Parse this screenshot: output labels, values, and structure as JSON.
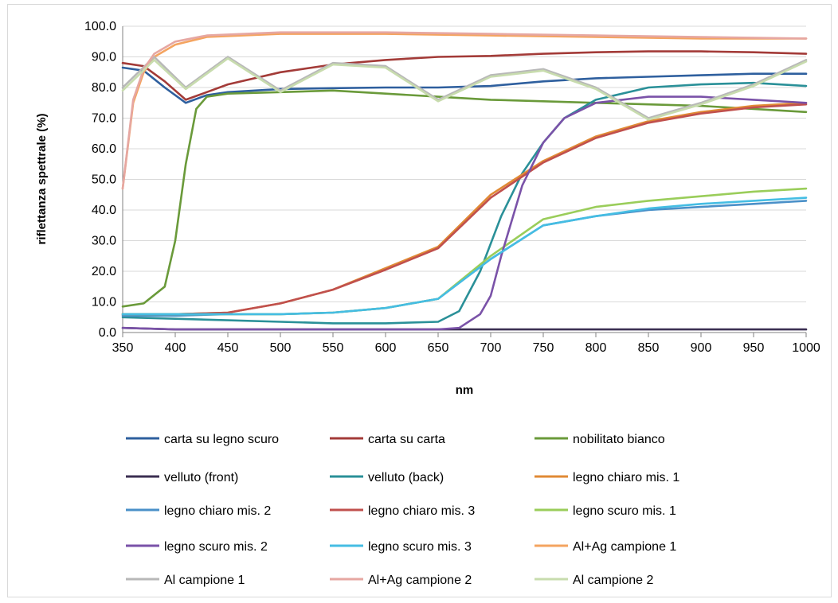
{
  "chart_data": {
    "type": "line",
    "title": "",
    "xlabel": "nm",
    "ylabel": "riflettanza spettrale (%)",
    "xlim": [
      350,
      1000
    ],
    "ylim": [
      0,
      100
    ],
    "x_ticks": [
      "350",
      "400",
      "450",
      "500",
      "550",
      "600",
      "650",
      "700",
      "750",
      "800",
      "850",
      "900",
      "950",
      "1000"
    ],
    "y_ticks": [
      "0.0",
      "10.0",
      "20.0",
      "30.0",
      "40.0",
      "50.0",
      "60.0",
      "70.0",
      "80.0",
      "90.0",
      "100.0"
    ],
    "grid": "horizontal",
    "legend_position": "bottom",
    "series": [
      {
        "name": "carta su legno scuro",
        "color": "#2e5f9e",
        "x": [
          350,
          370,
          390,
          410,
          430,
          450,
          500,
          550,
          600,
          650,
          700,
          750,
          800,
          850,
          900,
          950,
          1000
        ],
        "y": [
          86.5,
          85.5,
          80,
          75,
          77.5,
          78.5,
          79.5,
          79.8,
          80,
          80,
          80.5,
          82,
          83,
          83.5,
          84,
          84.5,
          84.5
        ]
      },
      {
        "name": "carta su carta",
        "color": "#a33b38",
        "x": [
          350,
          370,
          390,
          410,
          430,
          450,
          500,
          550,
          600,
          650,
          700,
          750,
          800,
          850,
          900,
          950,
          1000
        ],
        "y": [
          88,
          87,
          82,
          76,
          78.5,
          81,
          85,
          87.5,
          89,
          90,
          90.3,
          91,
          91.5,
          91.8,
          91.8,
          91.5,
          91
        ]
      },
      {
        "name": "nobilitato bianco",
        "color": "#6a9a3a",
        "x": [
          350,
          370,
          390,
          400,
          410,
          420,
          430,
          450,
          500,
          550,
          600,
          650,
          700,
          750,
          800,
          850,
          900,
          950,
          1000
        ],
        "y": [
          8.5,
          9.5,
          15,
          30,
          55,
          73,
          77,
          78,
          78.5,
          79,
          78,
          77,
          76,
          75.5,
          75,
          74.5,
          74,
          73,
          72
        ]
      },
      {
        "name": "velluto (front)",
        "color": "#3b2f52",
        "x": [
          350,
          400,
          450,
          500,
          550,
          600,
          650,
          700,
          750,
          800,
          850,
          900,
          950,
          1000
        ],
        "y": [
          1.5,
          1,
          1,
          1,
          1,
          1,
          1,
          1,
          1,
          1,
          1,
          1,
          1,
          1
        ]
      },
      {
        "name": "velluto (back)",
        "color": "#2a9098",
        "x": [
          350,
          400,
          450,
          500,
          550,
          600,
          650,
          670,
          690,
          710,
          730,
          750,
          770,
          800,
          850,
          900,
          950,
          1000
        ],
        "y": [
          5,
          4.5,
          4,
          3.5,
          3,
          3,
          3.5,
          7,
          20,
          38,
          52,
          62,
          70,
          76,
          80,
          81,
          81.5,
          80.5
        ]
      },
      {
        "name": "legno chiaro mis. 1",
        "color": "#e08a35",
        "x": [
          350,
          400,
          450,
          500,
          550,
          600,
          650,
          700,
          750,
          800,
          850,
          900,
          950,
          1000
        ],
        "y": [
          6,
          6,
          6.5,
          9.5,
          14,
          21,
          28,
          45,
          56,
          64,
          69,
          72,
          74,
          75
        ]
      },
      {
        "name": "legno chiaro mis. 2",
        "color": "#4a90c8",
        "x": [
          350,
          400,
          450,
          500,
          550,
          600,
          650,
          700,
          750,
          800,
          850,
          900,
          950,
          1000
        ],
        "y": [
          5.5,
          5.5,
          6,
          6,
          6.5,
          8,
          11,
          24,
          35,
          38,
          40,
          41,
          42,
          43
        ]
      },
      {
        "name": "legno chiaro mis. 3",
        "color": "#c0504d",
        "x": [
          350,
          400,
          450,
          500,
          550,
          600,
          650,
          700,
          750,
          800,
          850,
          900,
          950,
          1000
        ],
        "y": [
          6,
          6,
          6.5,
          9.5,
          14,
          20.5,
          27.5,
          44,
          55.5,
          63.5,
          68.5,
          71.5,
          73.5,
          74.5
        ]
      },
      {
        "name": "legno scuro mis. 1",
        "color": "#9acd5a",
        "x": [
          350,
          400,
          450,
          500,
          550,
          600,
          650,
          700,
          750,
          800,
          850,
          900,
          950,
          1000
        ],
        "y": [
          6,
          6,
          6,
          6,
          6.5,
          8,
          11,
          25,
          37,
          41,
          43,
          44.5,
          46,
          47
        ]
      },
      {
        "name": "legno scuro mis. 2",
        "color": "#7a52a8",
        "x": [
          350,
          400,
          450,
          500,
          550,
          600,
          650,
          670,
          690,
          700,
          710,
          730,
          750,
          770,
          800,
          850,
          900,
          950,
          1000
        ],
        "y": [
          1.5,
          1,
          1,
          1,
          1,
          1,
          1,
          1.5,
          6,
          12,
          25,
          48,
          62,
          70,
          75,
          77,
          77,
          76,
          75
        ]
      },
      {
        "name": "legno scuro mis. 3",
        "color": "#45bde3",
        "x": [
          350,
          400,
          450,
          500,
          550,
          600,
          650,
          700,
          750,
          800,
          850,
          900,
          950,
          1000
        ],
        "y": [
          6,
          6,
          6,
          6,
          6.5,
          8,
          11,
          24,
          35,
          38,
          40.5,
          42,
          43,
          44
        ]
      },
      {
        "name": "Al+Ag campione 1",
        "color": "#f4a460",
        "x": [
          350,
          360,
          370,
          380,
          400,
          430,
          500,
          600,
          700,
          800,
          900,
          1000
        ],
        "y": [
          47,
          75,
          85,
          90,
          94,
          96.5,
          97.5,
          97.5,
          97,
          96.5,
          96,
          96
        ]
      },
      {
        "name": "Al campione 1",
        "color": "#b8b8b8",
        "x": [
          350,
          380,
          410,
          450,
          500,
          550,
          600,
          650,
          700,
          750,
          800,
          850,
          900,
          950,
          1000
        ],
        "y": [
          80,
          90,
          80,
          90,
          79,
          88,
          87,
          76,
          84,
          86,
          80,
          70,
          75,
          81,
          89
        ]
      },
      {
        "name": "Al+Ag campione 2",
        "color": "#e6a7a2",
        "x": [
          350,
          360,
          370,
          380,
          400,
          430,
          500,
          600,
          700,
          800,
          900,
          1000
        ],
        "y": [
          47,
          76,
          86,
          91,
          95,
          97,
          98,
          98,
          97.5,
          97,
          96.5,
          96
        ]
      },
      {
        "name": "Al campione 2",
        "color": "#c8dcae",
        "x": [
          350,
          380,
          410,
          450,
          500,
          550,
          600,
          650,
          700,
          750,
          800,
          850,
          900,
          950,
          1000
        ],
        "y": [
          79,
          89,
          79.5,
          89.5,
          78.5,
          87.5,
          86.5,
          75.5,
          83.5,
          85.5,
          79.5,
          69.5,
          74.5,
          80.5,
          88.5
        ]
      }
    ]
  }
}
